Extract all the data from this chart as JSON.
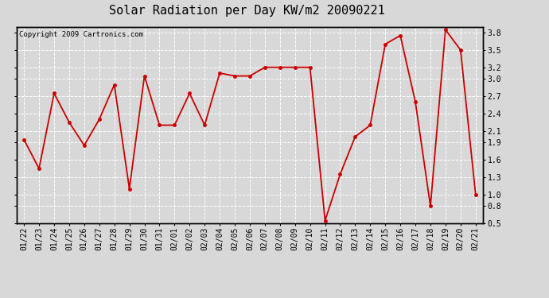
{
  "title": "Solar Radiation per Day KW/m2 20090221",
  "copyright": "Copyright 2009 Cartronics.com",
  "dates": [
    "01/22",
    "01/23",
    "01/24",
    "01/25",
    "01/26",
    "01/27",
    "01/28",
    "01/29",
    "01/30",
    "01/31",
    "02/01",
    "02/02",
    "02/03",
    "02/04",
    "02/05",
    "02/06",
    "02/07",
    "02/08",
    "02/09",
    "02/10",
    "02/11",
    "02/12",
    "02/13",
    "02/14",
    "02/15",
    "02/16",
    "02/17",
    "02/18",
    "02/19",
    "02/20",
    "02/21"
  ],
  "values": [
    1.95,
    1.45,
    2.75,
    2.25,
    1.85,
    2.3,
    2.9,
    1.1,
    3.05,
    2.2,
    2.2,
    2.75,
    2.2,
    3.1,
    3.05,
    3.05,
    3.2,
    3.2,
    3.2,
    3.2,
    0.55,
    1.35,
    2.0,
    2.2,
    3.6,
    3.75,
    2.6,
    0.8,
    3.85,
    3.5,
    1.0
  ],
  "line_color": "#cc0000",
  "marker": "o",
  "marker_size": 2.5,
  "line_width": 1.3,
  "background_color": "#d8d8d8",
  "plot_bg_color": "#d8d8d8",
  "grid_color": "#ffffff",
  "ylim": [
    0.5,
    3.9
  ],
  "yticks": [
    0.5,
    0.8,
    1.0,
    1.3,
    1.6,
    1.9,
    2.1,
    2.4,
    2.7,
    3.0,
    3.2,
    3.5,
    3.8
  ],
  "title_fontsize": 11,
  "tick_fontsize": 7,
  "copyright_fontsize": 6.5
}
